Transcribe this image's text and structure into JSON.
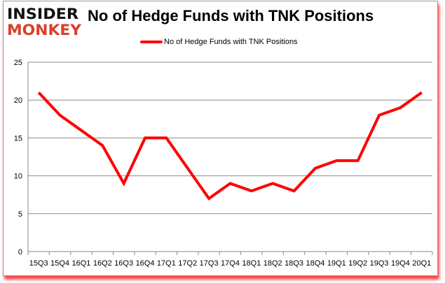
{
  "logo": {
    "line1": "INSIDER",
    "line2": "MONKEY"
  },
  "chart_data": {
    "type": "line",
    "title": "No of Hedge Funds with TNK Positions",
    "categories": [
      "15Q3",
      "15Q4",
      "16Q1",
      "16Q2",
      "16Q3",
      "16Q4",
      "17Q1",
      "17Q2",
      "17Q3",
      "17Q4",
      "18Q1",
      "18Q2",
      "18Q3",
      "18Q4",
      "19Q1",
      "19Q2",
      "19Q3",
      "19Q4",
      "20Q1"
    ],
    "series": [
      {
        "name": "No of Hedge Funds with TNK Positions",
        "color": "#ff0000",
        "values": [
          21,
          18,
          16,
          14,
          9,
          15,
          15,
          11,
          7,
          9,
          8,
          9,
          8,
          11,
          12,
          12,
          18,
          19,
          21
        ]
      }
    ],
    "ylim": [
      0,
      25
    ],
    "yticks": [
      0,
      5,
      10,
      15,
      20,
      25
    ],
    "grid": true,
    "legend": "top-center"
  }
}
